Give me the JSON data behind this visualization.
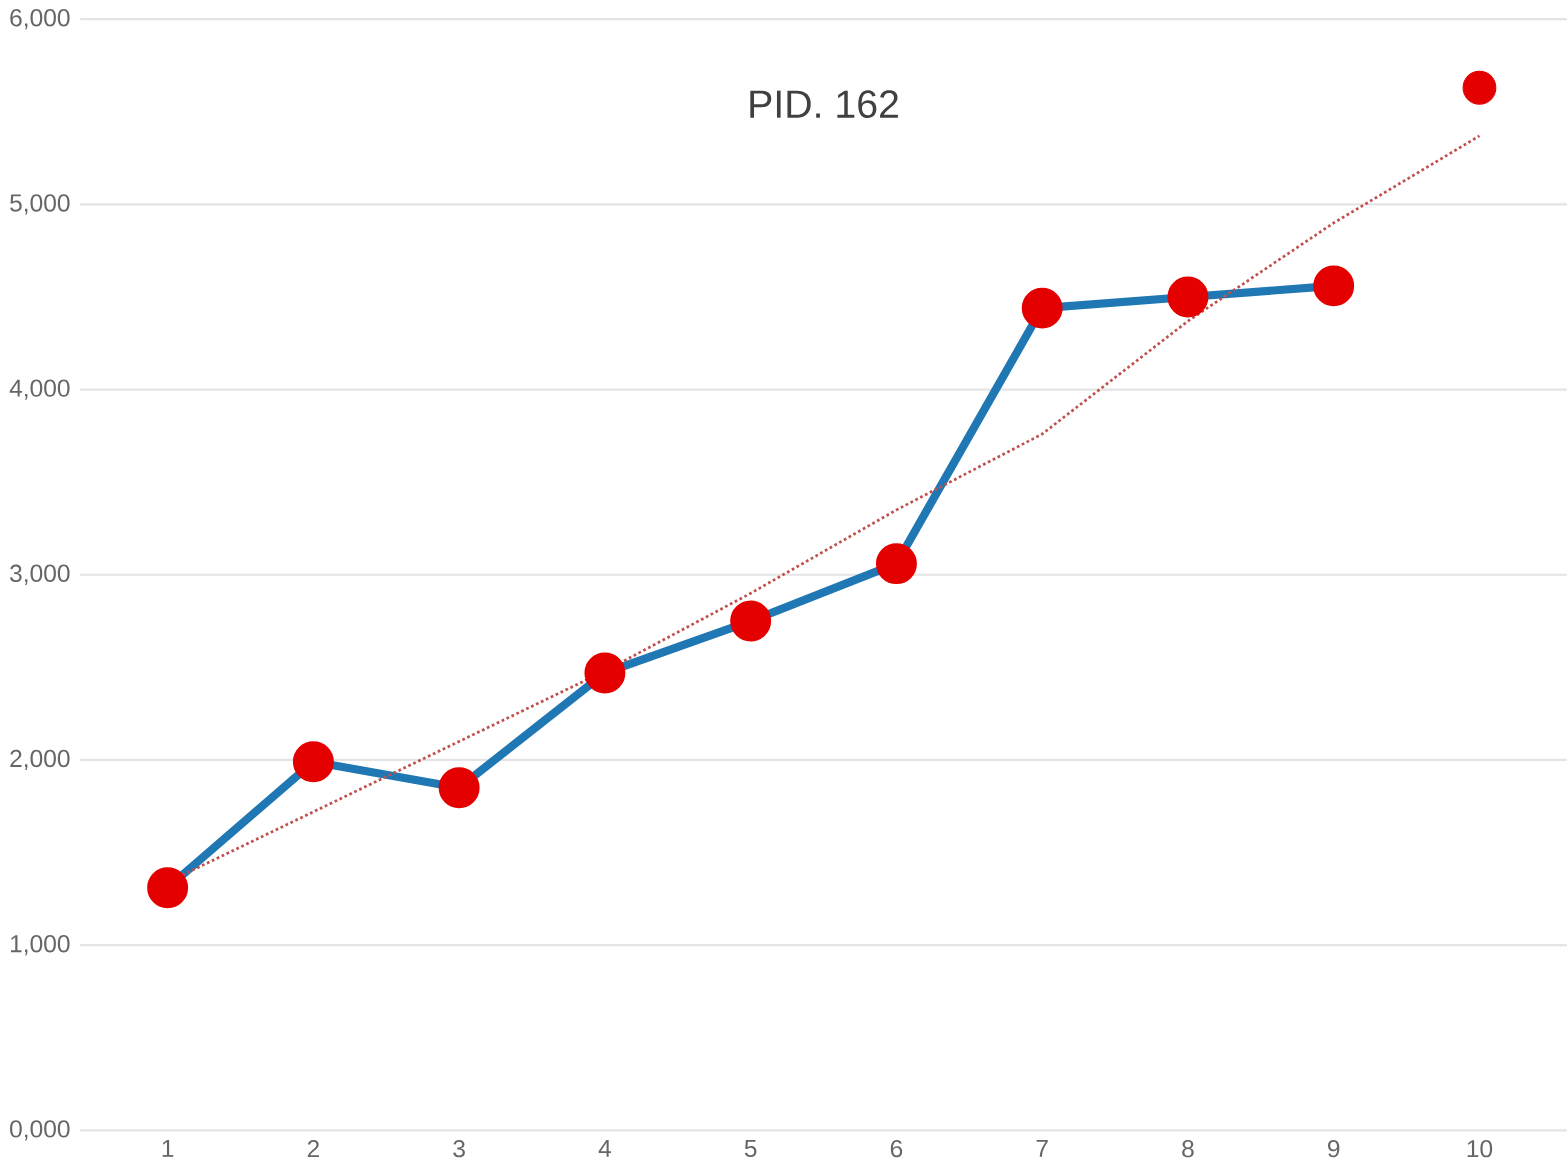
{
  "chart_data": {
    "type": "line",
    "title": "PID. 162",
    "categories": [
      "1",
      "2",
      "3",
      "4",
      "5",
      "6",
      "7",
      "8",
      "9",
      "10"
    ],
    "series": [
      {
        "color": "#1f77b4",
        "marker": "circle",
        "values": [
          1310,
          1990,
          1850,
          2470,
          2750,
          3060,
          4440,
          4500,
          4560,
          null
        ]
      },
      {
        "type": "scatter",
        "color": "#e00000",
        "marker": "circle",
        "values": [
          null,
          null,
          null,
          null,
          null,
          null,
          null,
          null,
          null,
          5630
        ]
      },
      {
        "color": "#c0504d",
        "line_style": "dotted",
        "marker": "none",
        "values": [
          1340,
          1720,
          2100,
          2480,
          2900,
          3350,
          3760,
          4370,
          4900,
          5370
        ]
      }
    ],
    "ylim": [
      0,
      6000
    ],
    "yticks": [
      {
        "value": 0,
        "label": "0,000"
      },
      {
        "value": 1000,
        "label": "1,000"
      },
      {
        "value": 2000,
        "label": "2,000"
      },
      {
        "value": 3000,
        "label": "3,000"
      },
      {
        "value": 4000,
        "label": "4,000"
      },
      {
        "value": 5000,
        "label": "5,000"
      },
      {
        "value": 6000,
        "label": "6,000"
      }
    ],
    "grid": "y"
  }
}
